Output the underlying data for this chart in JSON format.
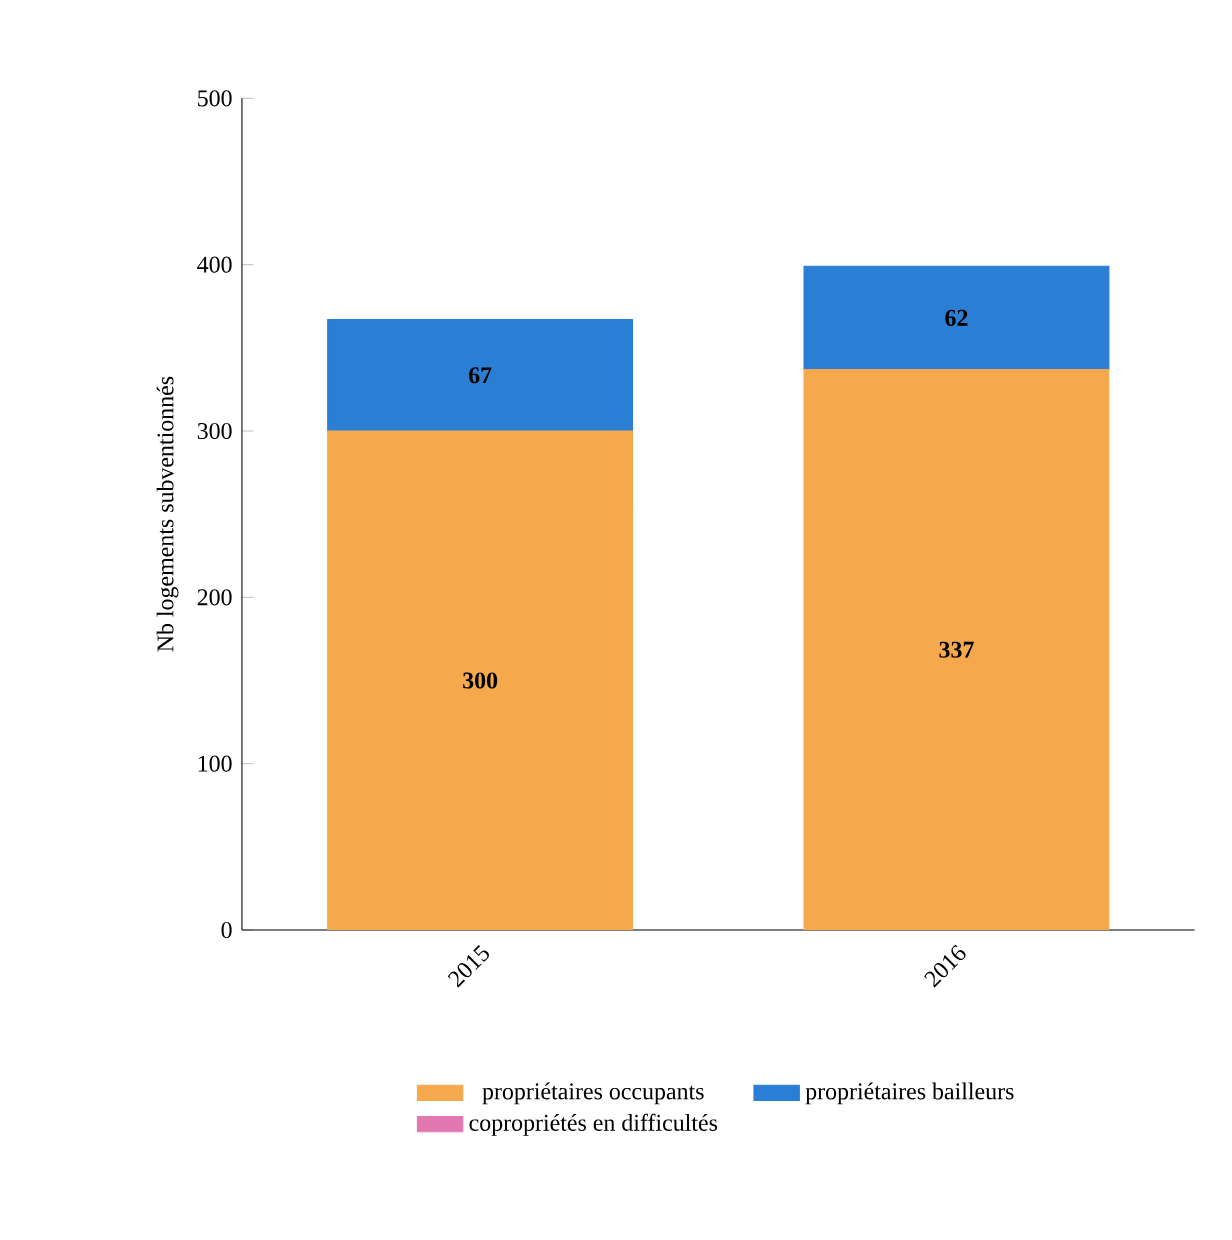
{
  "chart_data": {
    "type": "bar",
    "stacked": true,
    "ylabel": "Nb logements subventionnés",
    "categories": [
      "2015",
      "2016"
    ],
    "ylim": [
      0,
      500
    ],
    "yticks": [
      0,
      100,
      200,
      300,
      400,
      500
    ],
    "legend": "bottom",
    "series": [
      {
        "name": "propriétaires occupants",
        "color": "#f5a94c",
        "values": [
          300,
          337
        ],
        "value_labels": [
          "300",
          "337"
        ]
      },
      {
        "name": "propriétaires bailleurs",
        "color": "#2a7fd4",
        "values": [
          67,
          62
        ],
        "value_labels": [
          "67",
          "62"
        ]
      },
      {
        "name": "copropriétés en difficultés",
        "color": "#e377b0",
        "values": [
          0,
          0
        ],
        "value_labels": [
          null,
          null
        ]
      }
    ]
  }
}
